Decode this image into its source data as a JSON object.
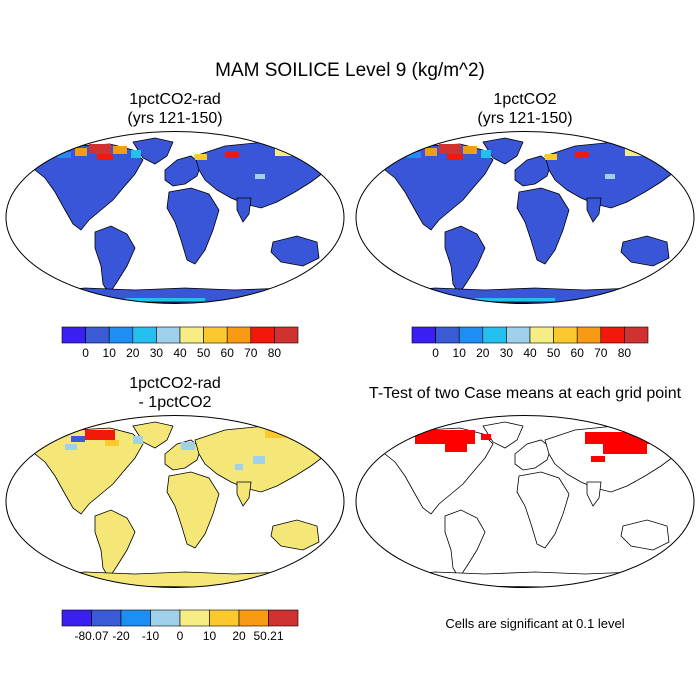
{
  "title": "MAM SOILICE Level 9 (kg/m^2)",
  "footnote": "Cells are significant at 0.1 level",
  "panels": [
    {
      "title_line1": "1pctCO2-rad",
      "title_line2": "(yrs 121-150)",
      "fill": "#3a56d8",
      "kind": "abs"
    },
    {
      "title_line1": "1pctCO2",
      "title_line2": "(yrs 121-150)",
      "fill": "#3a56d8",
      "kind": "abs"
    },
    {
      "title_line1": "1pctCO2-rad",
      "title_line2": "- 1pctCO2",
      "fill": "#f4e777",
      "kind": "diff"
    },
    {
      "title_line1": "T-Test of two Case means at each grid point",
      "title_line2": "",
      "fill": "#ffffff",
      "kind": "ttest"
    }
  ],
  "chart_data": [
    {
      "type": "heatmap",
      "title": "1pctCO2-rad (yrs 121-150)",
      "colorbar": {
        "colors": [
          "#3b1ef2",
          "#3a5ad6",
          "#1e8ef4",
          "#23bfee",
          "#9fd0ec",
          "#f6ee84",
          "#fcc830",
          "#f89a14",
          "#f3180c",
          "#d03232"
        ],
        "tick_labels": [
          "0",
          "10",
          "20",
          "30",
          "40",
          "50",
          "60",
          "70",
          "80"
        ]
      },
      "description_values": {
        "land_dominant": 0,
        "high_latitude_max": 80
      }
    },
    {
      "type": "heatmap",
      "title": "1pctCO2 (yrs 121-150)",
      "colorbar": {
        "colors": [
          "#3b1ef2",
          "#3a5ad6",
          "#1e8ef4",
          "#23bfee",
          "#9fd0ec",
          "#f6ee84",
          "#fcc830",
          "#f89a14",
          "#f3180c",
          "#d03232"
        ],
        "tick_labels": [
          "0",
          "10",
          "20",
          "30",
          "40",
          "50",
          "60",
          "70",
          "80"
        ]
      },
      "description_values": {
        "land_dominant": 0,
        "high_latitude_max": 80
      }
    },
    {
      "type": "heatmap",
      "title": "1pctCO2-rad - 1pctCO2",
      "colorbar": {
        "colors": [
          "#3b1ef2",
          "#3a5ad6",
          "#1e8ef4",
          "#9fd0ec",
          "#f6ee84",
          "#fcc830",
          "#f89a14",
          "#d03232"
        ],
        "tick_labels": [
          "-80.07",
          "-20",
          "-10",
          "0",
          "10",
          "20",
          "50.21"
        ]
      },
      "range": [
        -80.07,
        50.21
      ]
    },
    {
      "type": "heatmap",
      "title": "T-Test of two Case means at each grid point",
      "significance_level": 0.1,
      "significant_color": "#ff0000"
    }
  ]
}
